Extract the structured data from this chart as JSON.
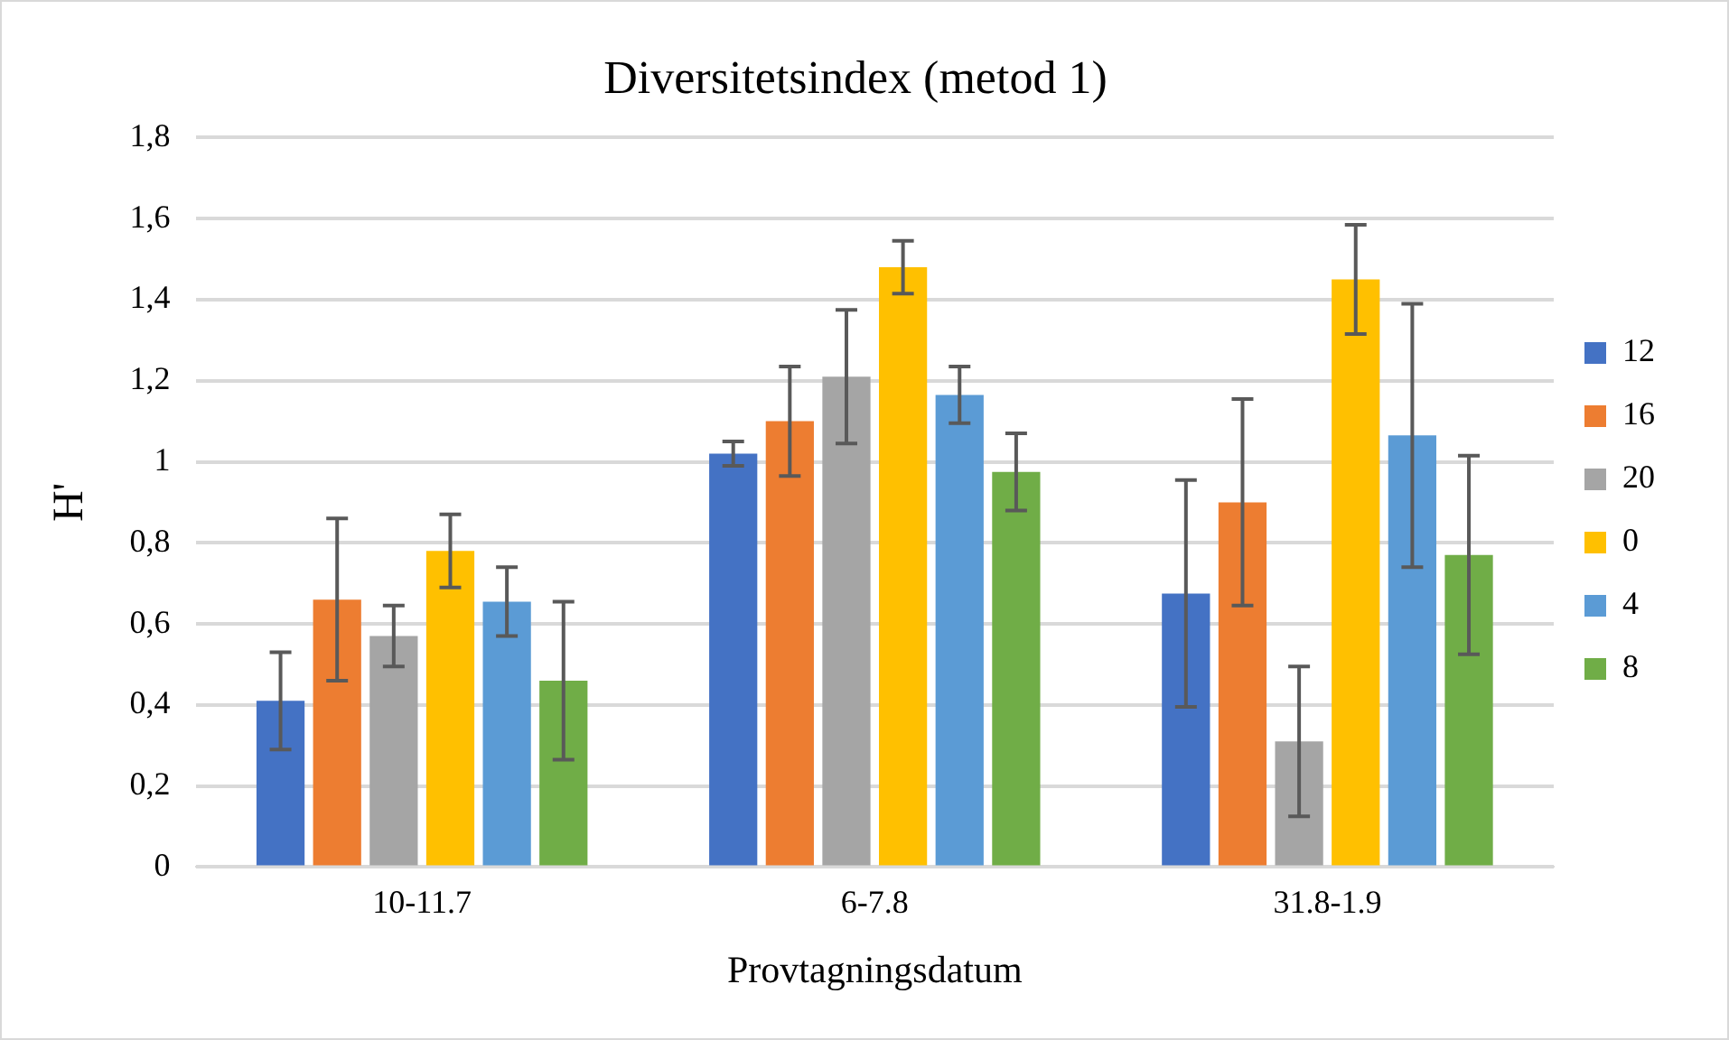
{
  "chart_data": {
    "type": "bar",
    "title": "Diversitetsindex (metod 1)",
    "xlabel": "Provtagningsdatum",
    "ylabel": "H'",
    "categories": [
      "10-11.7",
      "6-7.8",
      "31.8-1.9"
    ],
    "series": [
      {
        "name": "12",
        "color": "#4472c4",
        "values": [
          0.41,
          1.02,
          0.675
        ],
        "errors": [
          0.12,
          0.03,
          0.28
        ]
      },
      {
        "name": "16",
        "color": "#ed7d31",
        "values": [
          0.66,
          1.1,
          0.9
        ],
        "errors": [
          0.2,
          0.135,
          0.255
        ]
      },
      {
        "name": "20",
        "color": "#a5a5a5",
        "values": [
          0.57,
          1.21,
          0.31
        ],
        "errors": [
          0.075,
          0.165,
          0.185
        ]
      },
      {
        "name": "0",
        "color": "#ffc000",
        "values": [
          0.78,
          1.48,
          1.45
        ],
        "errors": [
          0.09,
          0.065,
          0.135
        ]
      },
      {
        "name": "4",
        "color": "#5b9bd5",
        "values": [
          0.655,
          1.165,
          1.065
        ],
        "errors": [
          0.085,
          0.07,
          0.325
        ]
      },
      {
        "name": "8",
        "color": "#70ad47",
        "values": [
          0.46,
          0.975,
          0.77
        ],
        "errors": [
          0.195,
          0.095,
          0.245
        ]
      }
    ],
    "ylim": [
      0,
      1.8
    ],
    "yticks": [
      0,
      {
        "value": 0.2,
        "label": "0,2"
      },
      {
        "value": 0.4,
        "label": "0,4"
      },
      {
        "value": 0.6,
        "label": "0,6"
      },
      {
        "value": 0.8,
        "label": "0,8"
      },
      1,
      {
        "value": 1.2,
        "label": "1,2"
      },
      {
        "value": 1.4,
        "label": "1,4"
      },
      {
        "value": 1.6,
        "label": "1,6"
      },
      {
        "value": 1.8,
        "label": "1,8"
      }
    ],
    "grid": "y",
    "legend": "right"
  }
}
